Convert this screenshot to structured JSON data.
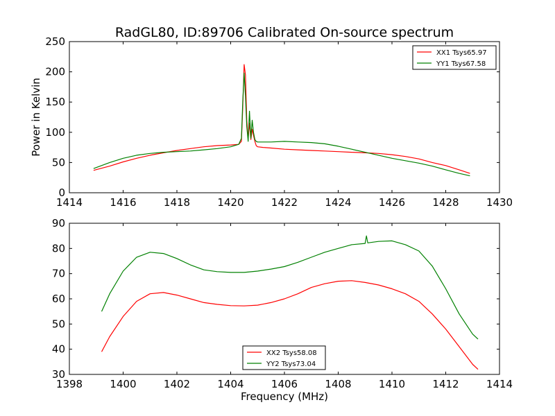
{
  "figure": {
    "title": "RadGL80, ID:89706 Calibrated On-source spectrum",
    "colors": {
      "xx": "#ff0000",
      "yy": "#008000",
      "axes": "#000000",
      "background": "#ffffff"
    }
  },
  "chart_data": [
    {
      "type": "line",
      "title": "RadGL80, ID:89706 Calibrated On-source spectrum",
      "xlabel": "",
      "ylabel": "Power in Kelvin",
      "xlim": [
        1414,
        1430
      ],
      "ylim": [
        0,
        250
      ],
      "xticks": [
        "1414",
        "1416",
        "1418",
        "1420",
        "1422",
        "1424",
        "1426",
        "1428",
        "1430"
      ],
      "yticks": [
        "0",
        "50",
        "100",
        "150",
        "200",
        "250"
      ],
      "grid": false,
      "legend_position": "top-right",
      "series": [
        {
          "name": "XX1 Tsys65.97",
          "color": "#ff0000",
          "x": [
            1414.9,
            1415.5,
            1416.0,
            1416.5,
            1417.0,
            1417.5,
            1418.0,
            1418.5,
            1419.0,
            1419.5,
            1420.0,
            1420.3,
            1420.4,
            1420.45,
            1420.5,
            1420.55,
            1420.6,
            1420.65,
            1420.7,
            1420.75,
            1420.8,
            1420.85,
            1420.9,
            1420.95,
            1421.0,
            1421.2,
            1421.5,
            1422.0,
            1422.5,
            1423.0,
            1423.5,
            1424.0,
            1424.5,
            1425.0,
            1425.5,
            1426.0,
            1426.5,
            1427.0,
            1427.5,
            1428.0,
            1428.5,
            1428.9
          ],
          "y": [
            37,
            44,
            51,
            57,
            62,
            66,
            70,
            73,
            76,
            78,
            79,
            80,
            85,
            140,
            212,
            195,
            120,
            90,
            115,
            88,
            105,
            95,
            85,
            78,
            76,
            75,
            74,
            72,
            71,
            70,
            69,
            68,
            67,
            66,
            65,
            63,
            60,
            56,
            50,
            45,
            38,
            32
          ]
        },
        {
          "name": "YY1 Tsys67.58",
          "color": "#008000",
          "x": [
            1414.9,
            1415.5,
            1416.0,
            1416.5,
            1417.0,
            1417.5,
            1418.0,
            1418.5,
            1419.0,
            1419.5,
            1420.0,
            1420.3,
            1420.4,
            1420.45,
            1420.5,
            1420.55,
            1420.6,
            1420.65,
            1420.7,
            1420.75,
            1420.8,
            1420.85,
            1420.9,
            1420.95,
            1421.0,
            1421.5,
            1422.0,
            1422.5,
            1423.0,
            1423.5,
            1424.0,
            1424.5,
            1425.0,
            1425.5,
            1426.0,
            1426.5,
            1427.0,
            1427.5,
            1428.0,
            1428.5,
            1428.9
          ],
          "y": [
            40,
            50,
            57,
            62,
            65,
            67,
            68,
            69,
            71,
            73,
            76,
            80,
            90,
            150,
            198,
            160,
            110,
            85,
            135,
            90,
            120,
            100,
            88,
            85,
            84,
            84,
            85,
            84,
            83,
            81,
            77,
            72,
            67,
            62,
            57,
            53,
            49,
            44,
            38,
            32,
            28
          ]
        }
      ]
    },
    {
      "type": "line",
      "title": "",
      "xlabel": "Frequency (MHz)",
      "ylabel": "",
      "xlim": [
        1398,
        1414
      ],
      "ylim": [
        30,
        90
      ],
      "xticks": [
        "1398",
        "1400",
        "1402",
        "1404",
        "1406",
        "1408",
        "1410",
        "1412",
        "1414"
      ],
      "yticks": [
        "30",
        "40",
        "50",
        "60",
        "70",
        "80",
        "90"
      ],
      "grid": false,
      "legend_position": "bottom-center",
      "series": [
        {
          "name": "XX2 Tsys58.08",
          "color": "#ff0000",
          "x": [
            1399.2,
            1399.5,
            1400.0,
            1400.5,
            1401.0,
            1401.5,
            1402.0,
            1402.5,
            1403.0,
            1403.5,
            1404.0,
            1404.5,
            1405.0,
            1405.5,
            1406.0,
            1406.5,
            1407.0,
            1407.5,
            1408.0,
            1408.5,
            1409.0,
            1409.5,
            1410.0,
            1410.5,
            1411.0,
            1411.5,
            1412.0,
            1412.5,
            1413.0,
            1413.2
          ],
          "y": [
            39,
            45,
            53,
            59,
            62,
            62.5,
            61.5,
            60,
            58.5,
            57.8,
            57.3,
            57.2,
            57.5,
            58.5,
            60,
            62,
            64.5,
            66,
            67,
            67.2,
            66.5,
            65.5,
            64,
            62,
            59,
            54,
            48,
            41,
            34,
            32
          ]
        },
        {
          "name": "YY2 Tsys73.04",
          "color": "#008000",
          "x": [
            1399.2,
            1399.5,
            1400.0,
            1400.5,
            1401.0,
            1401.5,
            1402.0,
            1402.5,
            1403.0,
            1403.5,
            1404.0,
            1404.5,
            1405.0,
            1405.5,
            1406.0,
            1406.5,
            1407.0,
            1407.5,
            1408.0,
            1408.5,
            1409.0,
            1409.05,
            1409.1,
            1409.5,
            1410.0,
            1410.5,
            1411.0,
            1411.5,
            1412.0,
            1412.5,
            1413.0,
            1413.2
          ],
          "y": [
            55,
            62,
            71,
            76.5,
            78.5,
            78,
            76,
            73.5,
            71.5,
            70.8,
            70.5,
            70.5,
            71,
            71.8,
            72.8,
            74.5,
            76.5,
            78.5,
            80,
            81.5,
            82,
            85,
            82.2,
            82.8,
            83,
            81.5,
            79,
            73,
            64,
            54,
            46,
            44
          ]
        }
      ]
    }
  ]
}
